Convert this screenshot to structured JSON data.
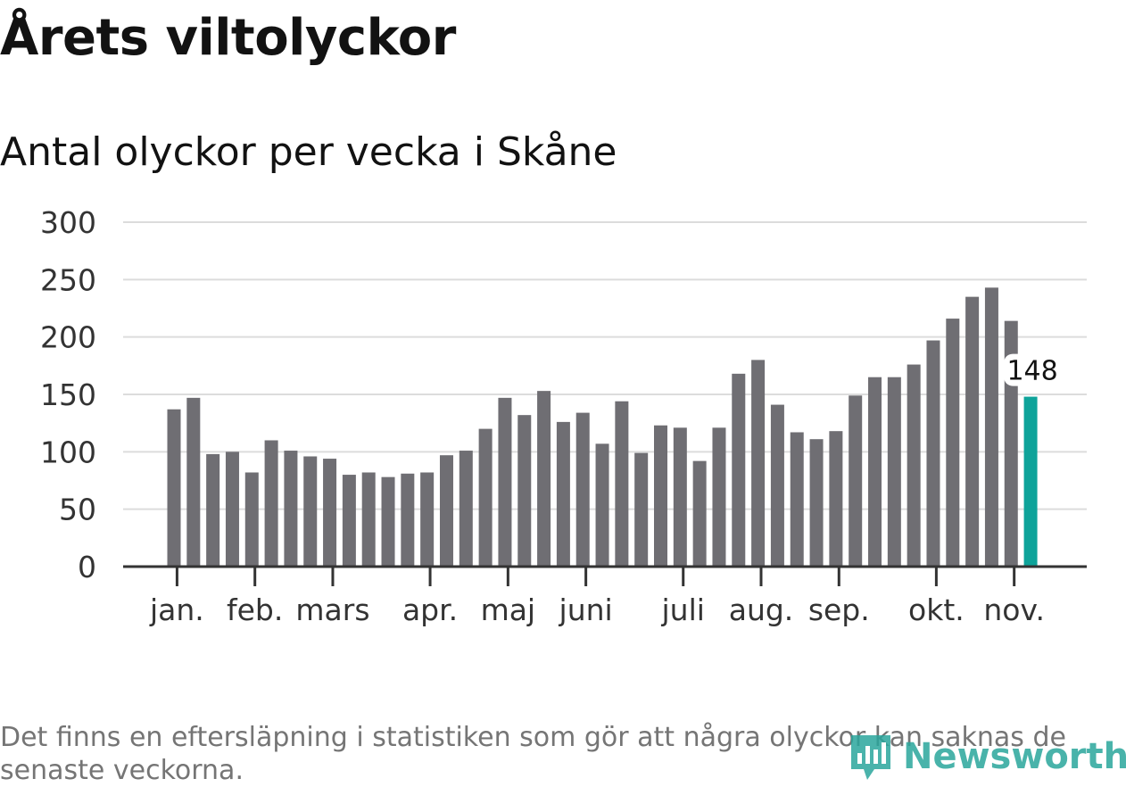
{
  "header": {
    "title": "Årets viltolyckor",
    "subtitle": "Antal olyckor per vecka i Skåne"
  },
  "footer": {
    "note": "Det finns en eftersläpning i statistiken som gör att några olyckor kan saknas de senaste veckorna.",
    "brand": "Newsworthy",
    "brand_icon": "newsworthy-logo-icon"
  },
  "colors": {
    "bar": "#6f6e73",
    "highlight": "#0ea39a",
    "grid": "#dcdcdc",
    "axis": "#333333",
    "brand": "#2aa69c"
  },
  "chart_data": {
    "type": "bar",
    "title": "Antal olyckor per vecka i Skåne",
    "xlabel": "",
    "ylabel": "",
    "ylim": [
      0,
      300
    ],
    "yticks": [
      0,
      50,
      100,
      150,
      200,
      250,
      300
    ],
    "grid": true,
    "month_labels": [
      {
        "label": "jan.",
        "week_index": 0.5
      },
      {
        "label": "feb.",
        "week_index": 4.5
      },
      {
        "label": "mars",
        "week_index": 8.5
      },
      {
        "label": "apr.",
        "week_index": 13.5
      },
      {
        "label": "maj",
        "week_index": 17.5
      },
      {
        "label": "juni",
        "week_index": 21.5
      },
      {
        "label": "juli",
        "week_index": 26.5
      },
      {
        "label": "aug.",
        "week_index": 30.5
      },
      {
        "label": "sep.",
        "week_index": 34.5
      },
      {
        "label": "okt.",
        "week_index": 39.5
      },
      {
        "label": "nov.",
        "week_index": 43.5
      }
    ],
    "values": [
      137,
      147,
      98,
      100,
      82,
      110,
      101,
      96,
      94,
      80,
      82,
      78,
      81,
      82,
      97,
      101,
      120,
      147,
      132,
      153,
      126,
      134,
      107,
      144,
      99,
      123,
      121,
      92,
      121,
      168,
      180,
      141,
      117,
      111,
      118,
      149,
      165,
      165,
      176,
      197,
      216,
      235,
      243,
      214,
      148
    ],
    "highlight_index": 44,
    "highlight_label": "148"
  }
}
